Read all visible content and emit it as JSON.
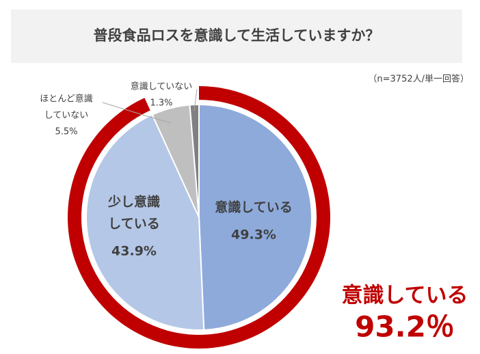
{
  "chart_data": {
    "type": "pie",
    "title": "普段食品ロスを意識して生活していますか？",
    "note": "（n=3752人/単一回答）",
    "categories": [
      [
        "意識している"
      ],
      [
        "少し意識",
        "している"
      ],
      [
        "ほとんど意識",
        "していない"
      ],
      [
        "意識していない"
      ]
    ],
    "values": [
      49.3,
      43.9,
      5.5,
      1.3
    ],
    "value_labels": [
      "49.3%",
      "43.9%",
      "5.5%",
      "1.3%"
    ],
    "colors": [
      "#8eaadb",
      "#b4c7e7",
      "#bfbfbf",
      "#808080"
    ],
    "highlight": {
      "label": "意識している",
      "value": 93.2,
      "value_label": "93.2％",
      "color": "#c00000"
    }
  }
}
